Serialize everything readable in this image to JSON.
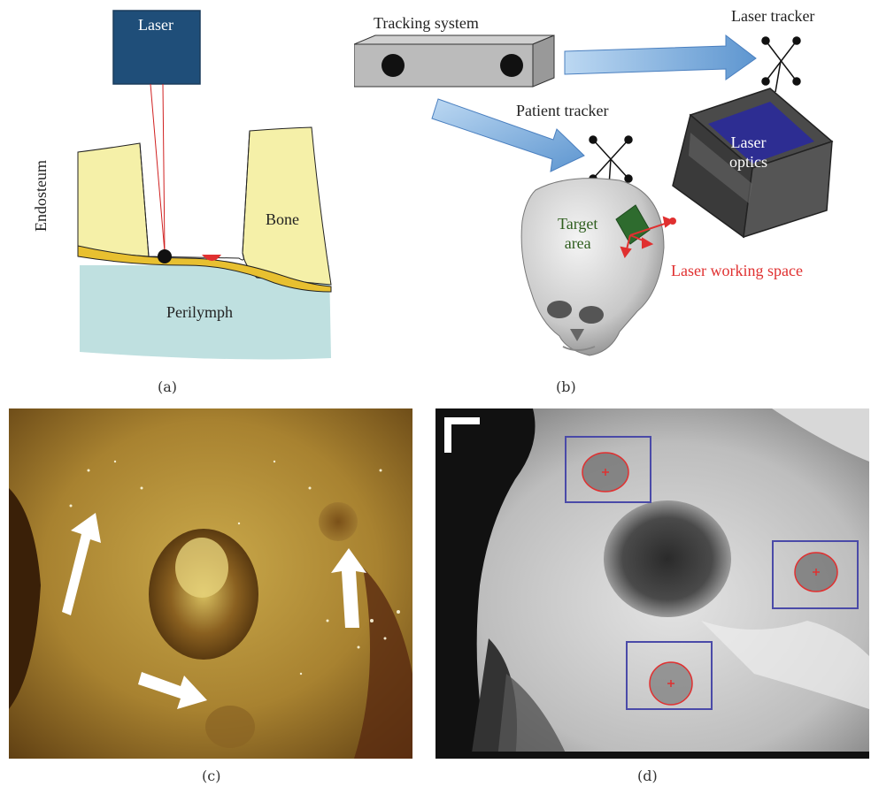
{
  "panel_a": {
    "caption": "(a)",
    "laser_label": "Laser",
    "bone_label": "Bone",
    "endosteum_label": "Endosteum",
    "perilymph_label": "Perilymph"
  },
  "panel_b": {
    "caption": "(b)",
    "tracking_system_label": "Tracking system",
    "laser_tracker_label": "Laser tracker",
    "patient_tracker_label": "Patient tracker",
    "laser_optics_label": "Laser\noptics",
    "target_area_label": "Target\narea",
    "laser_working_space_label": "Laser working space"
  },
  "panel_c": {
    "caption": "(c)"
  },
  "panel_d": {
    "caption": "(d)"
  },
  "colors": {
    "laser_box": "#1f4e79",
    "bone": "#f5f0a8",
    "perilymph": "#bfe0e0",
    "endosteum": "#e8c030",
    "arrow_blue": "#6fa6dc",
    "laser_red": "#e03030",
    "target_green": "#2e6b2e",
    "box_blue": "#4a4aa8"
  }
}
